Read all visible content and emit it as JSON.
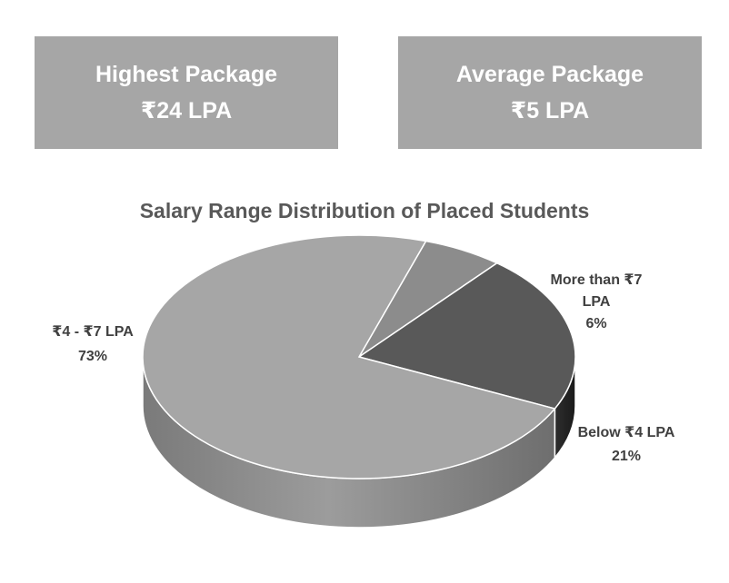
{
  "cards": {
    "highest": {
      "title": "Highest Package",
      "value": "₹24 LPA"
    },
    "average": {
      "title": "Average Package",
      "value": "₹5 LPA"
    }
  },
  "colors": {
    "card_bg": "#a6a6a6",
    "card_text": "#ffffff",
    "title_text": "#595959",
    "label_text": "#404040"
  },
  "chart_data": {
    "type": "pie",
    "style": "3d",
    "title": "Salary Range Distribution of Placed Students",
    "slices": [
      {
        "label": "₹4 - ₹7 LPA",
        "value": 73,
        "percent": "73%",
        "color": "#a6a6a6"
      },
      {
        "label": "More than ₹7 LPA",
        "value": 6,
        "percent": "6%",
        "color": "#8c8c8c"
      },
      {
        "label": "Below ₹4 LPA",
        "value": 21,
        "percent": "21%",
        "color": "#595959"
      }
    ]
  }
}
